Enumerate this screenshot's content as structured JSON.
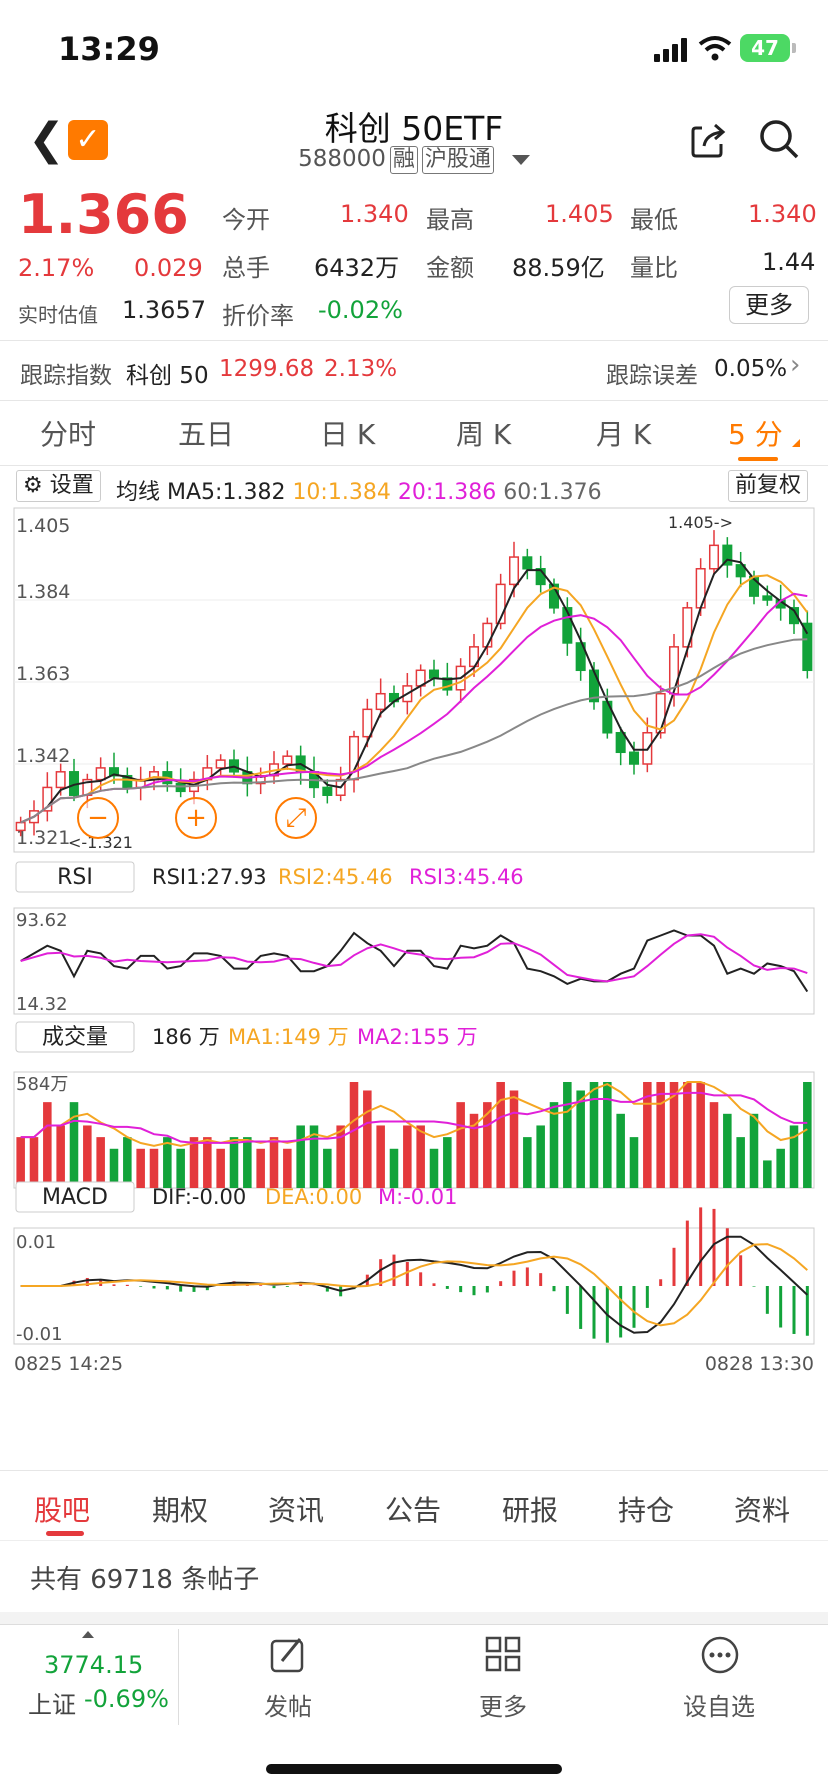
{
  "status": {
    "time": "13:29",
    "battery": "47"
  },
  "header": {
    "title": "科创 50ETF",
    "code": "588000",
    "tag1": "融",
    "tag2": "沪股通"
  },
  "quote": {
    "price": "1.366",
    "pct": "2.17%",
    "chg": "0.029",
    "open_label": "今开",
    "open": "1.340",
    "high_label": "最高",
    "high": "1.405",
    "low_label": "最低",
    "low": "1.340",
    "vol_label": "总手",
    "vol": "6432万",
    "amt_label": "金额",
    "amt": "88.59亿",
    "ratio_label": "量比",
    "ratio": "1.44",
    "est_label": "实时估值",
    "est": "1.3657",
    "disc_label": "折价率",
    "disc": "-0.02%",
    "more": "更多"
  },
  "tracking": {
    "label": "跟踪指数",
    "index": "科创 50",
    "value": "1299.68",
    "pct": "2.13%",
    "err_label": "跟踪误差",
    "err": "0.05%"
  },
  "tabs": [
    "分时",
    "五日",
    "日 K",
    "周 K",
    "月 K",
    "5 分"
  ],
  "ma_bar": {
    "settings": "设置",
    "label": "均线",
    "ma5": "MA5:1.382",
    "ma10": "10:1.384",
    "ma20": "20:1.386",
    "ma60": "60:1.376",
    "adj": "前复权"
  },
  "kline": {
    "y_labels": [
      "1.405",
      "1.384",
      "1.363",
      "1.342",
      "1.321"
    ],
    "hi_note": "1.405->",
    "lo_note": "<-1.321"
  },
  "rsi": {
    "name": "RSI",
    "v1": "RSI1:27.93",
    "v2": "RSI2:45.46",
    "v3": "RSI3:45.46",
    "top": "93.62",
    "bottom": "14.32"
  },
  "volume": {
    "name": "成交量",
    "cur": "186 万",
    "ma1": "MA1:149 万",
    "ma2": "MA2:155 万",
    "top": "584万"
  },
  "macd": {
    "name": "MACD",
    "dif": "DIF:-0.00",
    "dea": "DEA:0.00",
    "m": "M:-0.01",
    "top": "0.01",
    "bottom": "-0.01"
  },
  "time_axis": {
    "start": "0825 14:25",
    "end": "0828 13:30"
  },
  "bottom_tabs": [
    "股吧",
    "期权",
    "资讯",
    "公告",
    "研报",
    "持仓",
    "资料"
  ],
  "posts": "共有 69718 条帖子",
  "footer": {
    "index_value": "3774.15",
    "index_name": "上证",
    "index_pct": "-0.69%",
    "post": "发帖",
    "more": "更多",
    "watch": "设自选"
  },
  "colors": {
    "up": "#e4393c",
    "down": "#12a33a",
    "accent": "#ff7a00",
    "ma10": "#f5a623",
    "ma20": "#e020d8",
    "ma60": "#888888"
  },
  "chart_data": {
    "type": "candlestick",
    "close_series": [
      1.327,
      1.33,
      1.336,
      1.34,
      1.334,
      1.338,
      1.341,
      1.339,
      1.336,
      1.338,
      1.34,
      1.337,
      1.335,
      1.338,
      1.341,
      1.343,
      1.34,
      1.337,
      1.339,
      1.342,
      1.344,
      1.34,
      1.336,
      1.334,
      1.338,
      1.349,
      1.356,
      1.36,
      1.358,
      1.362,
      1.366,
      1.364,
      1.361,
      1.367,
      1.372,
      1.378,
      1.388,
      1.395,
      1.392,
      1.388,
      1.382,
      1.373,
      1.366,
      1.358,
      1.35,
      1.345,
      1.342,
      1.35,
      1.36,
      1.372,
      1.382,
      1.392,
      1.398,
      1.393,
      1.39,
      1.385,
      1.384,
      1.382,
      1.378,
      1.366
    ],
    "ylim": [
      1.321,
      1.405
    ]
  }
}
